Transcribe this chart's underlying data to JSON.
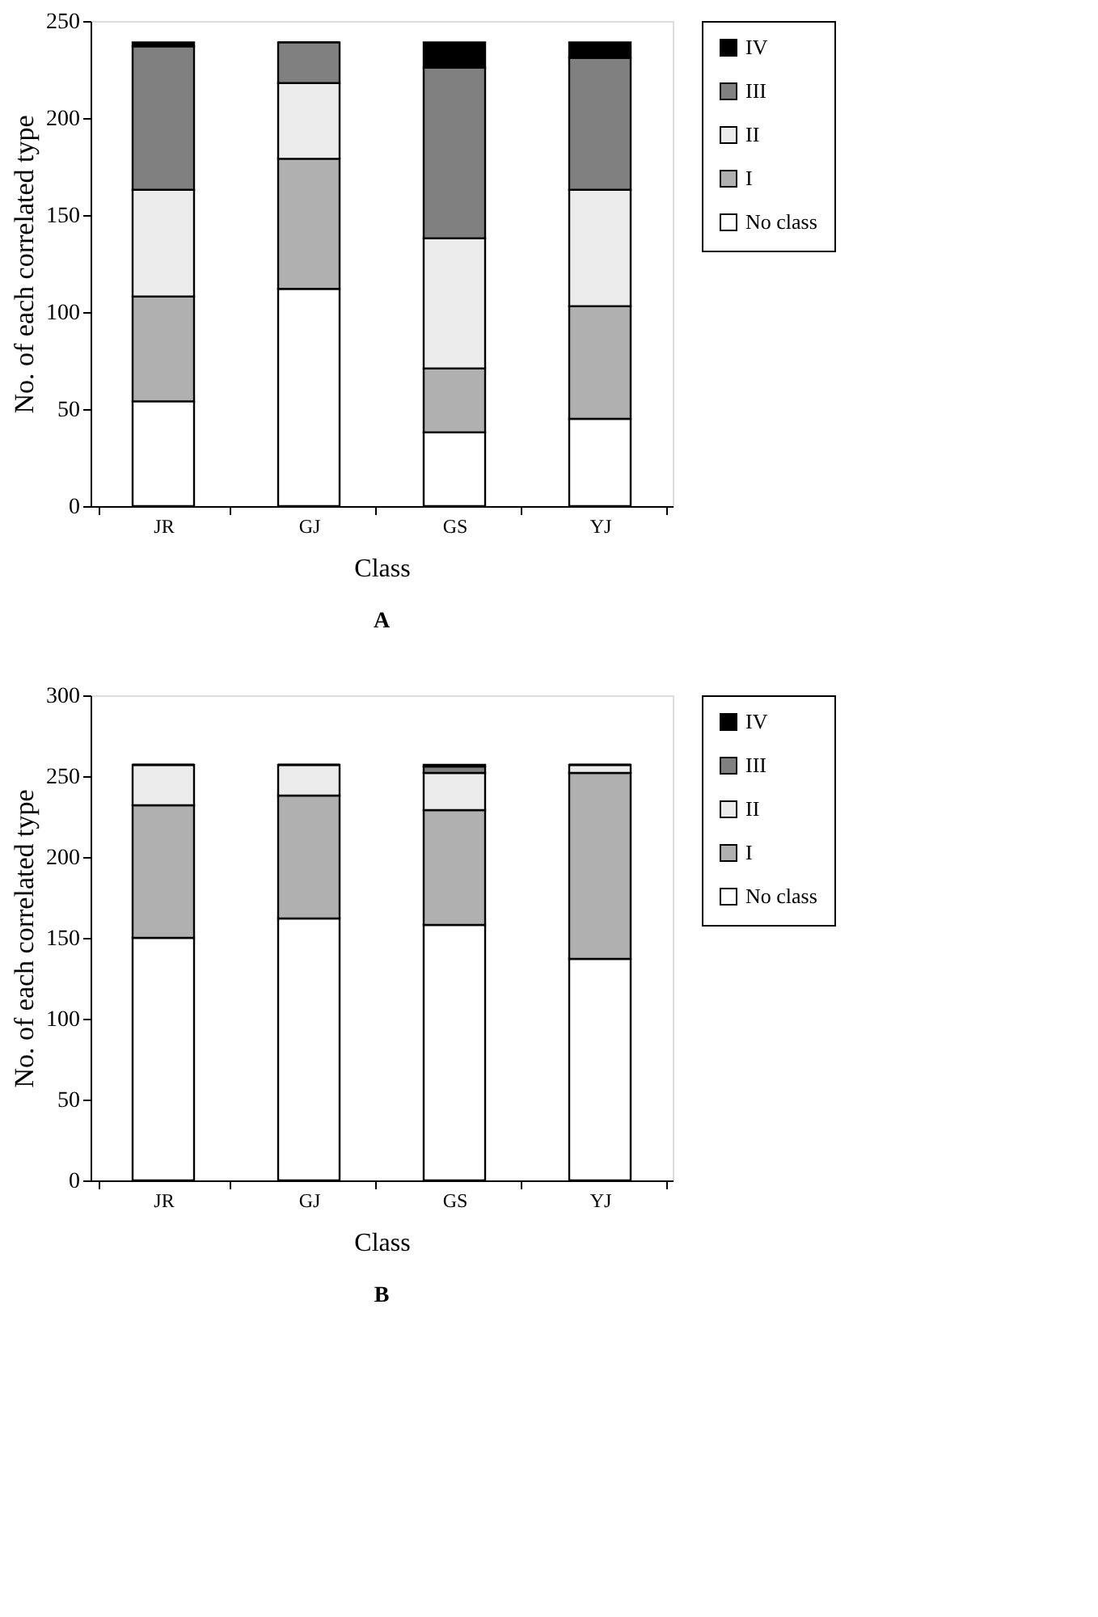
{
  "chart_data": [
    {
      "type": "bar",
      "stacked": true,
      "title": "A",
      "xlabel": "Class",
      "ylabel": "No. of each correlated type",
      "categories": [
        "JR",
        "GJ",
        "GS",
        "YJ"
      ],
      "ylim": [
        0,
        250
      ],
      "yticks": [
        0,
        50,
        100,
        150,
        200,
        250
      ],
      "grid": false,
      "legend": "right",
      "series": [
        {
          "name": "No class",
          "color": "#ffffff",
          "values": [
            54,
            112,
            38,
            45
          ]
        },
        {
          "name": "I",
          "color": "#b0b0b0",
          "values": [
            54,
            67,
            33,
            58
          ]
        },
        {
          "name": "II",
          "color": "#ececec",
          "values": [
            55,
            39,
            67,
            60
          ]
        },
        {
          "name": "III",
          "color": "#808080",
          "values": [
            74,
            21,
            88,
            68
          ]
        },
        {
          "name": "IV",
          "color": "#000000",
          "values": [
            2,
            0,
            13,
            8
          ]
        }
      ]
    },
    {
      "type": "bar",
      "stacked": true,
      "title": "B",
      "xlabel": "Class",
      "ylabel": "No. of each correlated type",
      "categories": [
        "JR",
        "GJ",
        "GS",
        "YJ"
      ],
      "ylim": [
        0,
        300
      ],
      "yticks": [
        0,
        50,
        100,
        150,
        200,
        250,
        300
      ],
      "grid": false,
      "legend": "right",
      "series": [
        {
          "name": "No class",
          "color": "#ffffff",
          "values": [
            150,
            162,
            158,
            137
          ]
        },
        {
          "name": "I",
          "color": "#b0b0b0",
          "values": [
            82,
            76,
            71,
            115
          ]
        },
        {
          "name": "II",
          "color": "#ececec",
          "values": [
            25,
            19,
            23,
            5
          ]
        },
        {
          "name": "III",
          "color": "#808080",
          "values": [
            0,
            0,
            4,
            0
          ]
        },
        {
          "name": "IV",
          "color": "#000000",
          "values": [
            0,
            0,
            1,
            0
          ]
        }
      ]
    }
  ]
}
